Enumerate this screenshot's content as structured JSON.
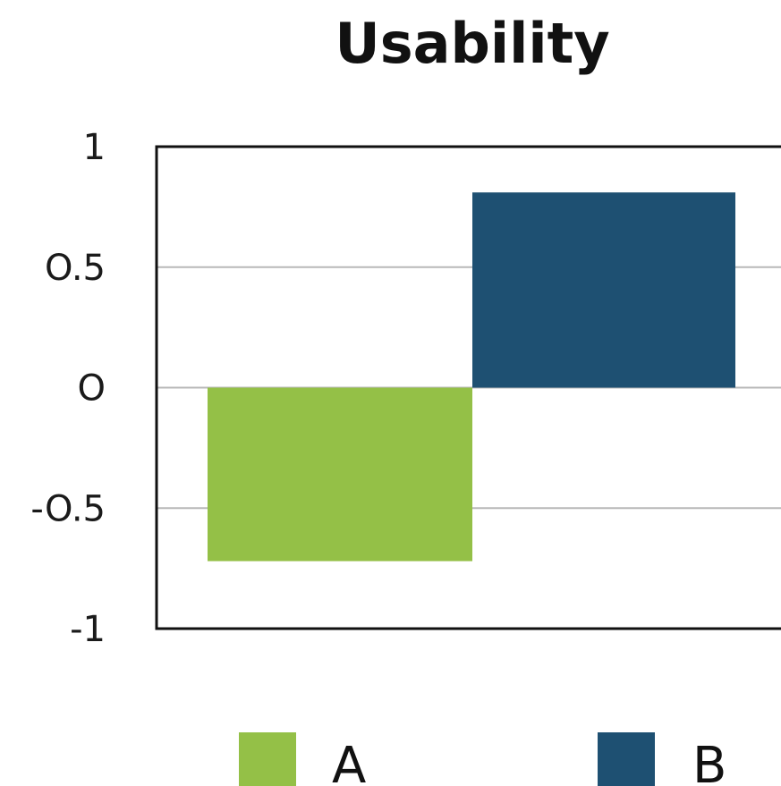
{
  "chart_data": {
    "type": "bar",
    "title": "Usability",
    "xlabel": "",
    "ylabel": "",
    "categories": [
      "A",
      "B"
    ],
    "values": [
      -0.72,
      0.81
    ],
    "ylim": [
      -1,
      1
    ],
    "y_ticks": [
      {
        "value": 1,
        "label": "1"
      },
      {
        "value": 0.5,
        "label": "O.5"
      },
      {
        "value": 0,
        "label": "O"
      },
      {
        "value": -0.5,
        "label": "-O.5"
      },
      {
        "value": -1,
        "label": "-1"
      }
    ],
    "grid": true,
    "legend": {
      "placement": "bottom",
      "entries": [
        {
          "label": "A",
          "color": "#94c047"
        },
        {
          "label": "B",
          "color": "#1e5072"
        }
      ]
    },
    "colors": [
      "#94c047",
      "#1e5072"
    ]
  }
}
